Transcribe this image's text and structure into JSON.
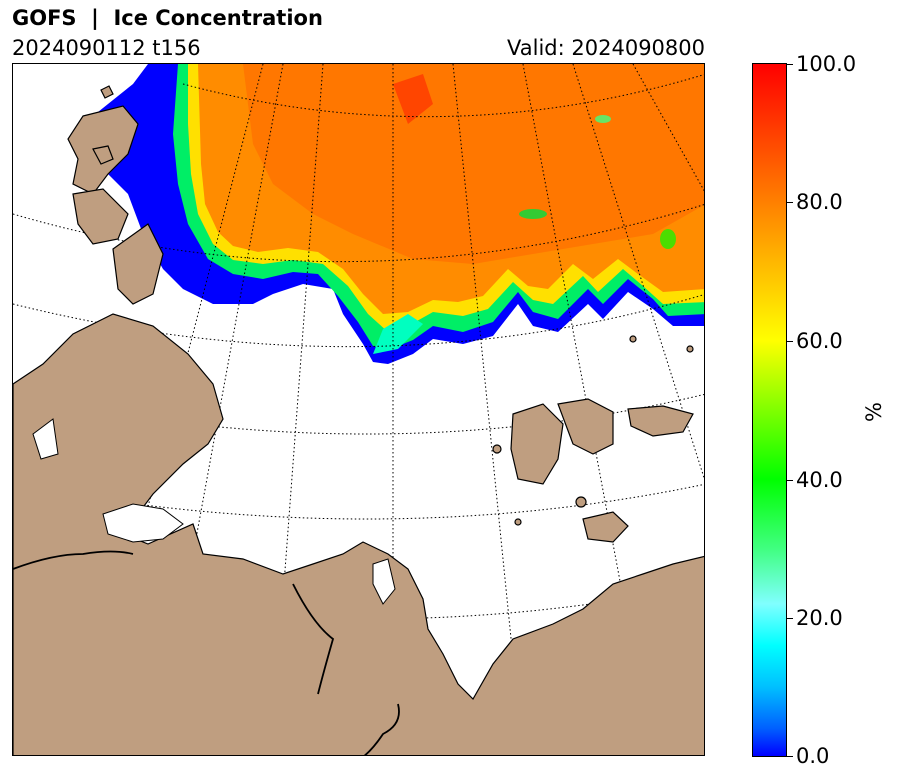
{
  "header": {
    "title": "GOFS  |  Ice Concentration",
    "run": "2024090112 t156",
    "valid": "Valid: 2024090800"
  },
  "map": {
    "land_color": "#bf9e80",
    "coast_color": "#000000",
    "ocean_color": "#ffffff",
    "graticule_style": "dotted"
  },
  "colorbar": {
    "unit": "%",
    "range": [
      0,
      100
    ],
    "ticks": [
      "0.0",
      "20.0",
      "40.0",
      "60.0",
      "80.0",
      "100.0"
    ],
    "colors": [
      "#0000ff",
      "#00ffff",
      "#00ff00",
      "#ffff00",
      "#ff8000",
      "#ff0000"
    ]
  }
}
